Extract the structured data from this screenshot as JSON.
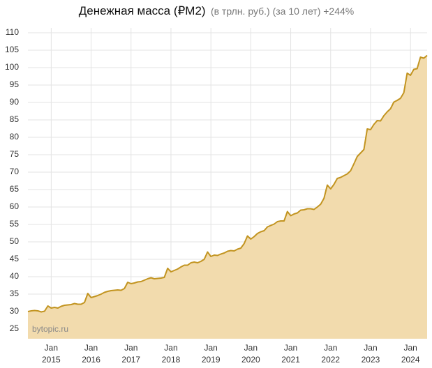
{
  "chart_data": {
    "type": "area",
    "title": "Денежная масса (₽M2)",
    "subtitle": "(в трлн. руб.) (за 10 лет) +244%",
    "watermark": "bytopic.ru",
    "color": "#c29420",
    "fill": "#f2dbad",
    "grid": true,
    "xlim": [
      "2014-06",
      "2024-06"
    ],
    "ylim": [
      22.2,
      111.4
    ],
    "yticks": [
      25,
      30,
      35,
      40,
      45,
      50,
      55,
      60,
      65,
      70,
      75,
      80,
      85,
      90,
      95,
      100,
      105,
      110
    ],
    "xticks": [
      {
        "value": "2015-01",
        "label": "Jan 2015"
      },
      {
        "value": "2016-01",
        "label": "Jan 2016"
      },
      {
        "value": "2017-01",
        "label": "Jan 2017"
      },
      {
        "value": "2018-01",
        "label": "Jan 2018"
      },
      {
        "value": "2019-01",
        "label": "Jan 2019"
      },
      {
        "value": "2020-01",
        "label": "Jan 2020"
      },
      {
        "value": "2021-01",
        "label": "Jan 2021"
      },
      {
        "value": "2022-01",
        "label": "Jan 2022"
      },
      {
        "value": "2023-01",
        "label": "Jan 2023"
      },
      {
        "value": "2024-01",
        "label": "Jan 2024"
      }
    ],
    "x": [
      "2014-06",
      "2014-07",
      "2014-08",
      "2014-09",
      "2014-10",
      "2014-11",
      "2014-12",
      "2015-01",
      "2015-02",
      "2015-03",
      "2015-04",
      "2015-05",
      "2015-06",
      "2015-07",
      "2015-08",
      "2015-09",
      "2015-10",
      "2015-11",
      "2015-12",
      "2016-01",
      "2016-02",
      "2016-03",
      "2016-04",
      "2016-05",
      "2016-06",
      "2016-07",
      "2016-08",
      "2016-09",
      "2016-10",
      "2016-11",
      "2016-12",
      "2017-01",
      "2017-02",
      "2017-03",
      "2017-04",
      "2017-05",
      "2017-06",
      "2017-07",
      "2017-08",
      "2017-09",
      "2017-10",
      "2017-11",
      "2017-12",
      "2018-01",
      "2018-02",
      "2018-03",
      "2018-04",
      "2018-05",
      "2018-06",
      "2018-07",
      "2018-08",
      "2018-09",
      "2018-10",
      "2018-11",
      "2018-12",
      "2019-01",
      "2019-02",
      "2019-03",
      "2019-04",
      "2019-05",
      "2019-06",
      "2019-07",
      "2019-08",
      "2019-09",
      "2019-10",
      "2019-11",
      "2019-12",
      "2020-01",
      "2020-02",
      "2020-03",
      "2020-04",
      "2020-05",
      "2020-06",
      "2020-07",
      "2020-08",
      "2020-09",
      "2020-10",
      "2020-11",
      "2020-12",
      "2021-01",
      "2021-02",
      "2021-03",
      "2021-04",
      "2021-05",
      "2021-06",
      "2021-07",
      "2021-08",
      "2021-09",
      "2021-10",
      "2021-11",
      "2021-12",
      "2022-01",
      "2022-02",
      "2022-03",
      "2022-04",
      "2022-05",
      "2022-06",
      "2022-07",
      "2022-08",
      "2022-09",
      "2022-10",
      "2022-11",
      "2022-12",
      "2023-01",
      "2023-02",
      "2023-03",
      "2023-04",
      "2023-05",
      "2023-06",
      "2023-07",
      "2023-08",
      "2023-09",
      "2023-10",
      "2023-11",
      "2023-12",
      "2024-01",
      "2024-02",
      "2024-03",
      "2024-04",
      "2024-05",
      "2024-06"
    ],
    "values": [
      30.0,
      30.2,
      30.3,
      30.2,
      29.9,
      30.1,
      31.6,
      31.0,
      31.2,
      31.0,
      31.5,
      31.8,
      31.9,
      32.0,
      32.3,
      32.1,
      32.1,
      32.6,
      35.2,
      34.0,
      34.3,
      34.6,
      35.0,
      35.5,
      35.8,
      36.0,
      36.1,
      36.2,
      36.1,
      36.6,
      38.4,
      38.0,
      38.2,
      38.5,
      38.6,
      39.0,
      39.4,
      39.7,
      39.4,
      39.5,
      39.6,
      39.8,
      42.4,
      41.4,
      41.8,
      42.2,
      42.8,
      43.3,
      43.3,
      44.0,
      44.2,
      44.0,
      44.4,
      45.0,
      47.1,
      45.8,
      46.2,
      46.1,
      46.5,
      46.8,
      47.3,
      47.5,
      47.4,
      47.9,
      48.2,
      49.5,
      51.7,
      50.8,
      51.5,
      52.4,
      52.9,
      53.2,
      54.3,
      54.7,
      55.1,
      55.8,
      56.0,
      56.0,
      58.7,
      57.5,
      58.0,
      58.3,
      59.1,
      59.2,
      59.5,
      59.5,
      59.3,
      60.0,
      60.8,
      62.5,
      66.3,
      65.2,
      66.5,
      68.2,
      68.5,
      69.0,
      69.5,
      70.4,
      72.4,
      74.5,
      75.5,
      76.5,
      82.4,
      82.2,
      83.7,
      84.8,
      84.7,
      86.2,
      87.3,
      88.2,
      90.1,
      90.6,
      91.2,
      92.8,
      98.4,
      97.8,
      99.5,
      99.7,
      103.0,
      102.7,
      103.5
    ]
  }
}
